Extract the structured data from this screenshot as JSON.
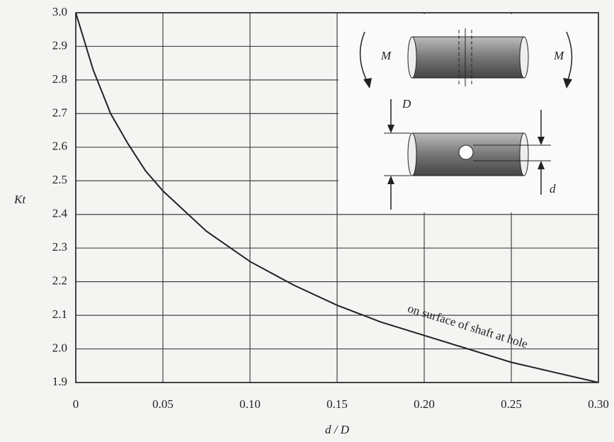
{
  "chart_data": {
    "type": "line",
    "xlabel": "d / D",
    "ylabel": "Kt",
    "x": [
      0,
      0.01,
      0.02,
      0.03,
      0.04,
      0.05,
      0.075,
      0.1,
      0.125,
      0.15,
      0.175,
      0.2,
      0.225,
      0.25,
      0.275,
      0.3
    ],
    "series": [
      {
        "name": "on surface of shaft at hole",
        "color": "#222222",
        "values": [
          3.0,
          2.83,
          2.7,
          2.61,
          2.53,
          2.47,
          2.35,
          2.26,
          2.19,
          2.13,
          2.08,
          2.04,
          2.0,
          1.96,
          1.93,
          1.9
        ]
      }
    ],
    "xlim": [
      0,
      0.3
    ],
    "ylim": [
      1.9,
      3.0
    ],
    "xticks": [
      0,
      0.05,
      {
        "value": 0.1,
        "label": "0.10"
      },
      0.15,
      {
        "value": 0.2,
        "label": "0.20"
      },
      0.25,
      {
        "value": 0.3,
        "label": "0.30"
      }
    ],
    "yticks": [
      1.9,
      {
        "value": 2,
        "label": "2.0"
      },
      2.1,
      2.2,
      2.3,
      2.4,
      2.5,
      2.6,
      2.7,
      2.8,
      2.9,
      {
        "value": 3,
        "label": "3.0"
      }
    ],
    "grid": true,
    "inset_labels": [
      "M",
      "M",
      "D",
      "d"
    ]
  }
}
